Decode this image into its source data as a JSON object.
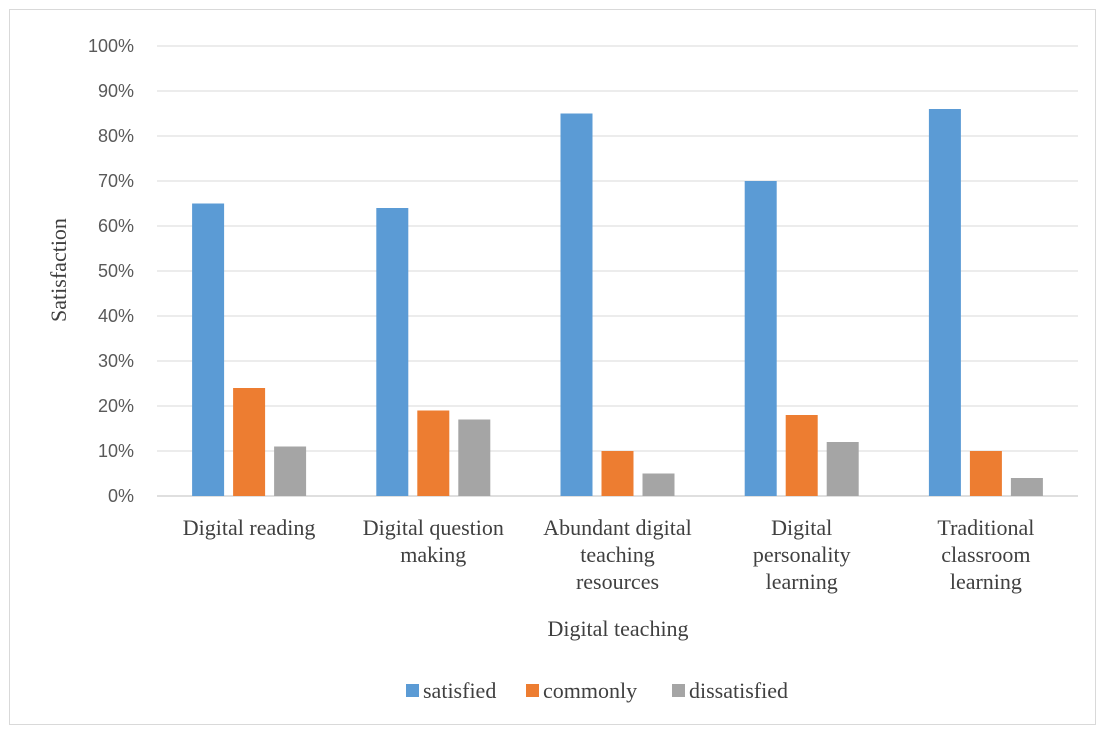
{
  "chart_data": {
    "type": "bar",
    "title": "",
    "xlabel": "Digital teaching",
    "ylabel": "Satisfaction",
    "ylim": [
      0,
      100
    ],
    "yticks": [
      "0%",
      "10%",
      "20%",
      "30%",
      "40%",
      "50%",
      "60%",
      "70%",
      "80%",
      "90%",
      "100%"
    ],
    "categories": [
      [
        "Digital reading"
      ],
      [
        "Digital question",
        "making"
      ],
      [
        "Abundant digital",
        "teaching",
        "resources"
      ],
      [
        "Digital",
        "personality",
        "learning"
      ],
      [
        "Traditional",
        "classroom",
        "learning"
      ]
    ],
    "series": [
      {
        "name": "satisfied",
        "color": "#5B9BD5",
        "values": [
          65,
          64,
          85,
          70,
          86
        ]
      },
      {
        "name": "commonly",
        "color": "#ED7D31",
        "values": [
          24,
          19,
          10,
          18,
          10
        ]
      },
      {
        "name": "dissatisfied",
        "color": "#A5A5A5",
        "values": [
          11,
          17,
          5,
          12,
          4
        ]
      }
    ],
    "grid": true,
    "legend_position": "bottom"
  }
}
